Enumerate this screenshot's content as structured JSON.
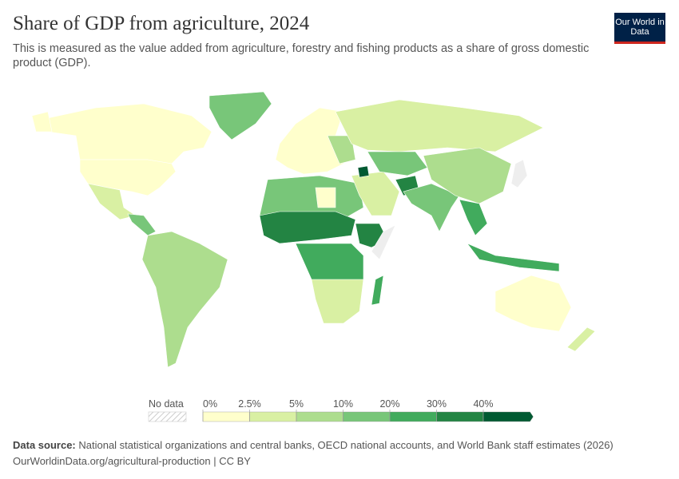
{
  "header": {
    "title": "Share of GDP from agriculture, 2024",
    "subtitle": "This is measured as the value added from agriculture, forestry and fishing products as a share of gross domestic product (GDP).",
    "logo": "Our World in Data"
  },
  "legend": {
    "no_data": "No data",
    "bins": [
      "0%",
      "2.5%",
      "5%",
      "10%",
      "20%",
      "30%",
      "40%"
    ],
    "colors": [
      "#ffffcc",
      "#d9f0a3",
      "#addd8e",
      "#78c679",
      "#41ab5d",
      "#238443",
      "#005a32"
    ],
    "no_data_color": "#eeeeee"
  },
  "footer": {
    "source_label": "Data source:",
    "source": "National statistical organizations and central banks, OECD national accounts, and World Bank staff estimates (2026)",
    "link": "OurWorldinData.org/agricultural-production | CC BY"
  }
}
